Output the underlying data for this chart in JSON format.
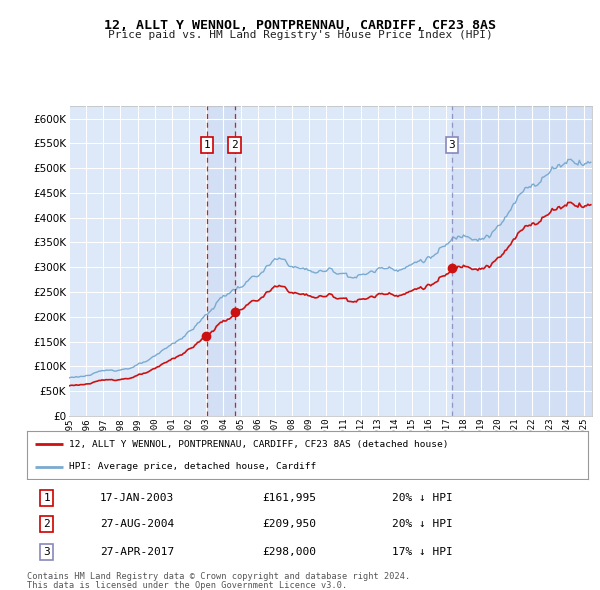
{
  "title_line1": "12, ALLT Y WENNOL, PONTPRENNAU, CARDIFF, CF23 8AS",
  "title_line2": "Price paid vs. HM Land Registry's House Price Index (HPI)",
  "background_color": "#ffffff",
  "plot_bg_color": "#dde8f8",
  "grid_color": "#ffffff",
  "hpi_color": "#7aaad0",
  "price_color": "#cc1111",
  "vline_color_12": "#cc0000",
  "vline_color_3": "#8888bb",
  "shade_color": "#c0d0ee",
  "purchases": [
    {
      "label": "1",
      "date_str": "17-JAN-2003",
      "date_num": 2003.04,
      "price": 161995,
      "pct": "20"
    },
    {
      "label": "2",
      "date_str": "27-AUG-2004",
      "date_num": 2004.65,
      "price": 209950,
      "pct": "20"
    },
    {
      "label": "3",
      "date_str": "27-APR-2017",
      "date_num": 2017.32,
      "price": 298000,
      "pct": "17"
    }
  ],
  "legend_line1": "12, ALLT Y WENNOL, PONTPRENNAU, CARDIFF, CF23 8AS (detached house)",
  "legend_line2": "HPI: Average price, detached house, Cardiff",
  "footer_line1": "Contains HM Land Registry data © Crown copyright and database right 2024.",
  "footer_line2": "This data is licensed under the Open Government Licence v3.0.",
  "yticks": [
    0,
    50000,
    100000,
    150000,
    200000,
    250000,
    300000,
    350000,
    400000,
    450000,
    500000,
    550000,
    600000
  ],
  "ylim": [
    0,
    625000
  ],
  "xlim_start": 1995.0,
  "xlim_end": 2025.5,
  "xtick_years": [
    1995,
    1996,
    1997,
    1998,
    1999,
    2000,
    2001,
    2002,
    2003,
    2004,
    2005,
    2006,
    2007,
    2008,
    2009,
    2010,
    2011,
    2012,
    2013,
    2014,
    2015,
    2016,
    2017,
    2018,
    2019,
    2020,
    2021,
    2022,
    2023,
    2024,
    2025
  ]
}
